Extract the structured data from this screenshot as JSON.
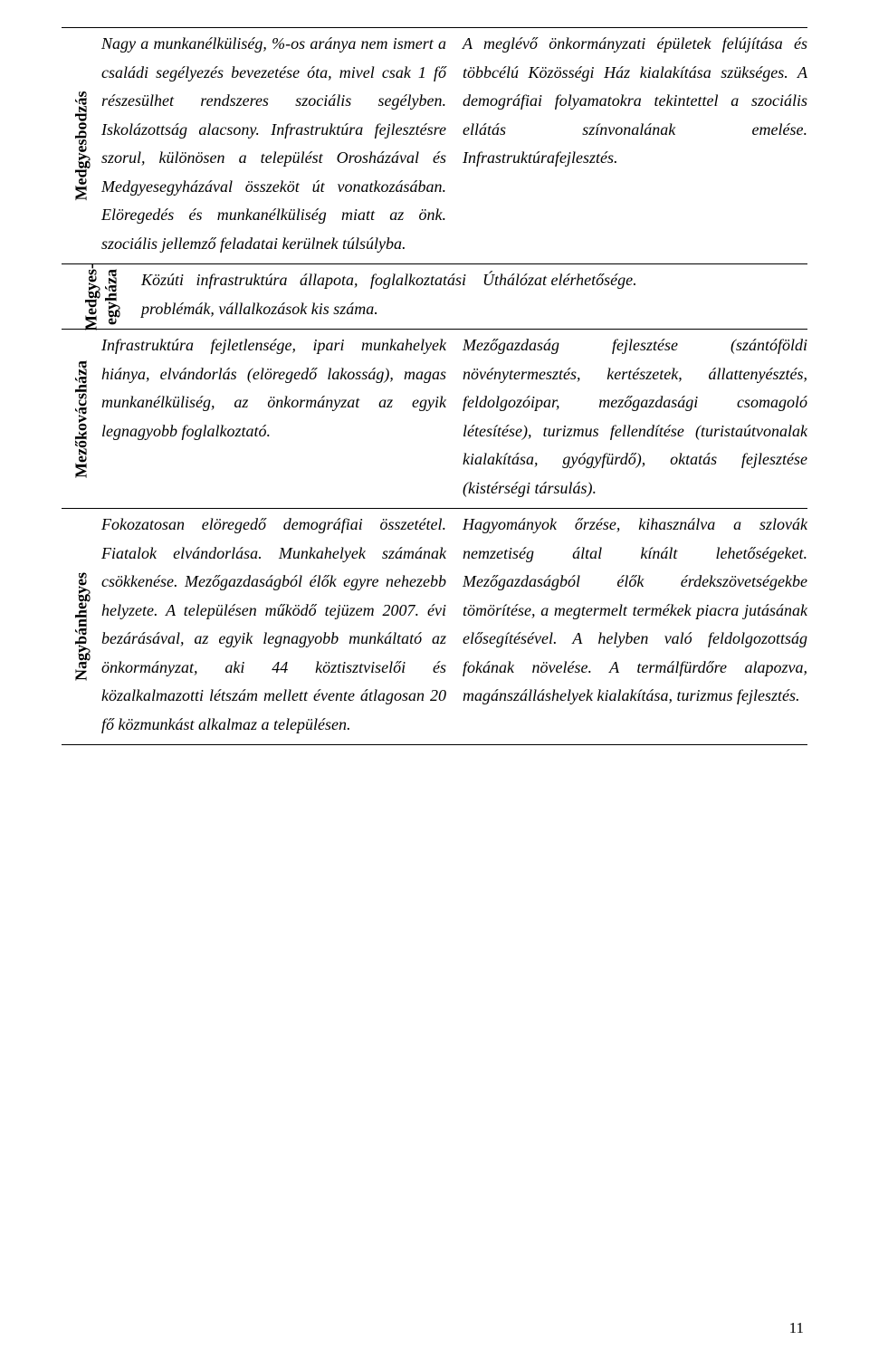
{
  "rows": [
    {
      "label": "Medgyesbodzás",
      "label_double": false,
      "left": "Nagy a munkanélküliség, %-os aránya nem ismert a családi segélyezés bevezetése óta, mivel csak 1 fő részesülhet rendszeres szociális segélyben. Iskolázottság alacsony. Infrastruktúra fejlesztésre szorul, különösen a települést Orosházával és Medgyesegyházával összeköt út vonatkozásában. Elöregedés és munkanélküliség miatt az önk. szociális jellemző feladatai kerülnek túlsúlyba.",
      "right": "A meglévő önkormányzati épületek felújítása és többcélú Közösségi Ház kialakítása szükséges. A demográfiai folyamatokra tekintettel a szociális ellátás színvonalának emelése. Infrastruktúrafejlesztés."
    },
    {
      "label": "Medgyes-\negyháza",
      "label_double": true,
      "left": "Közúti infrastruktúra állapota, foglalkoztatási problémák, vállalkozások kis száma.",
      "right": "Úthálózat elérhetősége."
    },
    {
      "label": "Mezőkovácsháza",
      "label_double": false,
      "left": "Infrastruktúra fejletlensége, ipari munkahelyek hiánya, elvándorlás (elöregedő lakosság), magas munkanélküliség, az önkormányzat az egyik legnagyobb foglalkoztató.",
      "right": "Mezőgazdaság fejlesztése (szántóföldi növénytermesztés, kertészetek, állattenyésztés, feldolgozóipar, mezőgazdasági csomagoló létesítése), turizmus fellendítése (turistaútvonalak kialakítása, gyógyfürdő), oktatás fejlesztése (kistérségi társulás)."
    },
    {
      "label": "Nagybánhegyes",
      "label_double": false,
      "left": "Fokozatosan elöregedő demográfiai összetétel. Fiatalok elvándorlása. Munkahelyek számának csökkenése. Mezőgazdaságból élők egyre nehezebb helyzete. A településen működő tejüzem 2007. évi bezárásával, az egyik legnagyobb munkáltató az önkormányzat, aki 44 köztisztviselői és közalkalmazotti létszám mellett évente átlagosan 20 fő közmunkást alkalmaz a településen.",
      "right": "Hagyományok őrzése, kihasználva a szlovák nemzetiség által kínált lehetőségeket. Mezőgazdaságból élők érdekszövetségekbe tömörítése, a megtermelt termékek piacra jutásának elősegítésével. A helyben való feldolgozottság fokának növelése. A termálfürdőre alapozva, magánszálláshelyek kialakítása, turizmus fejlesztés."
    }
  ],
  "page_number": "11"
}
